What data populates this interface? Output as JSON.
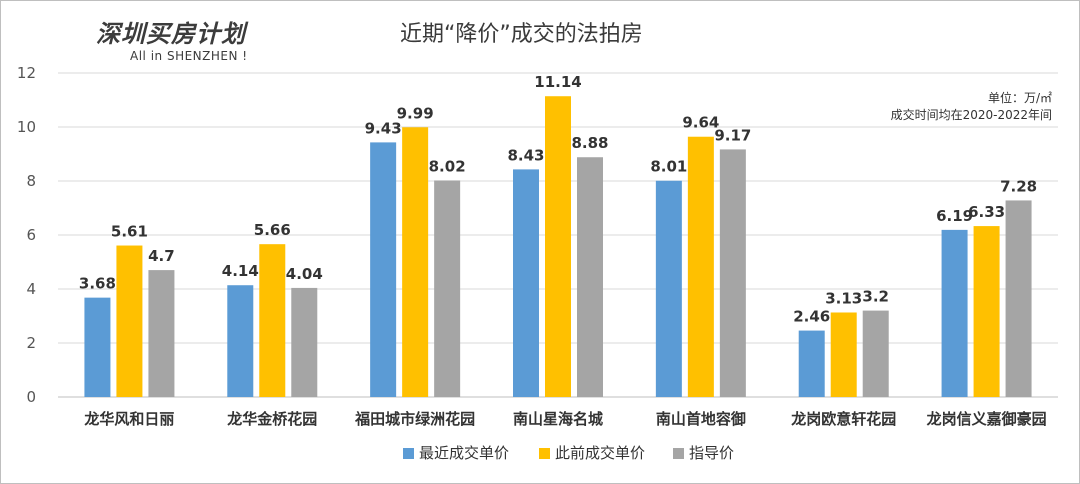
{
  "brand": {
    "name": "深圳买房计划",
    "subtitle": "All in SHENZHEN !"
  },
  "note": {
    "unit": "单位：万/㎡",
    "period": "成交时间均在2020-2022年间"
  },
  "chart_data": {
    "type": "bar",
    "title": "近期“降价”成交的法拍房",
    "categories": [
      "龙华风和日丽",
      "龙华金桥花园",
      "福田城市绿洲花园",
      "南山星海名城",
      "南山首地容御",
      "龙岗欧意轩花园",
      "龙岗信义嘉御豪园"
    ],
    "series": [
      {
        "name": "最近成交单价",
        "color": "#5b9bd5",
        "values": [
          3.68,
          4.14,
          9.43,
          8.43,
          8.01,
          2.46,
          6.19
        ]
      },
      {
        "name": "此前成交单价",
        "color": "#ffc000",
        "values": [
          5.61,
          5.66,
          9.99,
          11.14,
          9.64,
          3.13,
          6.33
        ]
      },
      {
        "name": "指导价",
        "color": "#a5a5a5",
        "values": [
          4.7,
          4.04,
          8.02,
          8.88,
          9.17,
          3.2,
          7.28
        ]
      }
    ],
    "data_labels": [
      [
        "3.68",
        "4.14",
        "9.43",
        "8.43",
        "8.01",
        "2.46",
        "6.19"
      ],
      [
        "5.61",
        "5.66",
        "9.99",
        "11.14",
        "9.64",
        "3.13",
        "6.33"
      ],
      [
        "4.7",
        "4.04",
        "8.02",
        "8.88",
        "9.17",
        "3.2",
        "7.28"
      ]
    ],
    "y_ticks": [
      "0",
      "2",
      "4",
      "6",
      "8",
      "10",
      "12"
    ],
    "ylim": [
      0,
      12
    ],
    "grid": true,
    "legend_position": "bottom"
  }
}
